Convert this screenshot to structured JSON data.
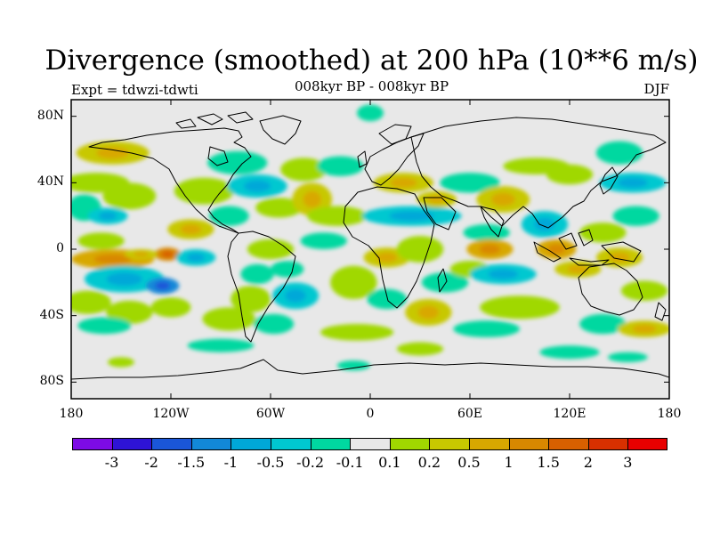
{
  "header": {
    "title": "Divergence (smoothed) at 200 hPa (10**6 m/s)",
    "subtitle": "008kyr BP - 008kyr BP",
    "expt": "Expt = tdwzi-tdwti",
    "season": "DJF"
  },
  "map": {
    "projection": "cylindrical-equidistant",
    "lon_range": [
      -180,
      180
    ],
    "lat_range": [
      -90,
      90
    ],
    "background_color": "#e8e8e8",
    "coastline_color": "#000000",
    "lat_ticks": [
      {
        "value": 80,
        "label": "80N"
      },
      {
        "value": 40,
        "label": "40N"
      },
      {
        "value": 0,
        "label": "0"
      },
      {
        "value": -40,
        "label": "40S"
      },
      {
        "value": -80,
        "label": "80S"
      }
    ],
    "lon_ticks": [
      {
        "value": -180,
        "label": "180"
      },
      {
        "value": -120,
        "label": "120W"
      },
      {
        "value": -60,
        "label": "60W"
      },
      {
        "value": 0,
        "label": "0"
      },
      {
        "value": 60,
        "label": "60E"
      },
      {
        "value": 120,
        "label": "120E"
      },
      {
        "value": 180,
        "label": "180"
      }
    ]
  },
  "colorbar": {
    "colors": [
      "#7d0be5",
      "#2e13d6",
      "#1a56d8",
      "#1288d8",
      "#00a8d8",
      "#00c8d0",
      "#00d8a0",
      "#e8e8e8",
      "#a0d800",
      "#c8c800",
      "#d8a800",
      "#d88800",
      "#d86000",
      "#d83000",
      "#e80000"
    ],
    "labels": [
      "-3",
      "-2",
      "-1.5",
      "-1",
      "-0.5",
      "-0.2",
      "-0.1",
      "0.1",
      "0.2",
      "0.5",
      "1",
      "1.5",
      "2",
      "3"
    ]
  },
  "field": {
    "blobs": [
      {
        "lon": -155,
        "lat": 58,
        "rx": 22,
        "ry": 7,
        "level": 2
      },
      {
        "lon": -165,
        "lat": 40,
        "rx": 20,
        "ry": 6,
        "level": 1
      },
      {
        "lon": -172,
        "lat": 25,
        "rx": 10,
        "ry": 8,
        "level": -1
      },
      {
        "lon": -158,
        "lat": 20,
        "rx": 12,
        "ry": 5,
        "level": -2
      },
      {
        "lon": -145,
        "lat": 32,
        "rx": 16,
        "ry": 8,
        "level": 1
      },
      {
        "lon": -162,
        "lat": 5,
        "rx": 14,
        "ry": 5,
        "level": 1
      },
      {
        "lon": -155,
        "lat": -6,
        "rx": 25,
        "ry": 6,
        "level": 3
      },
      {
        "lon": -122,
        "lat": -3,
        "rx": 8,
        "ry": 4,
        "level": 4
      },
      {
        "lon": -138,
        "lat": -3,
        "rx": 10,
        "ry": 3,
        "level": 2
      },
      {
        "lon": -148,
        "lat": -18,
        "rx": 24,
        "ry": 8,
        "level": -2
      },
      {
        "lon": -125,
        "lat": -22,
        "rx": 10,
        "ry": 5,
        "level": -4
      },
      {
        "lon": -170,
        "lat": -32,
        "rx": 14,
        "ry": 7,
        "level": 1
      },
      {
        "lon": -145,
        "lat": -38,
        "rx": 14,
        "ry": 7,
        "level": 1
      },
      {
        "lon": -120,
        "lat": -35,
        "rx": 12,
        "ry": 6,
        "level": 1
      },
      {
        "lon": -160,
        "lat": -46,
        "rx": 16,
        "ry": 5,
        "level": -1
      },
      {
        "lon": -108,
        "lat": 12,
        "rx": 14,
        "ry": 6,
        "level": 2
      },
      {
        "lon": -100,
        "lat": 35,
        "rx": 18,
        "ry": 8,
        "level": 1
      },
      {
        "lon": -80,
        "lat": 52,
        "rx": 18,
        "ry": 7,
        "level": -1
      },
      {
        "lon": -68,
        "lat": 38,
        "rx": 18,
        "ry": 7,
        "level": -2
      },
      {
        "lon": -85,
        "lat": 20,
        "rx": 12,
        "ry": 6,
        "level": -1
      },
      {
        "lon": -55,
        "lat": 25,
        "rx": 14,
        "ry": 6,
        "level": 1
      },
      {
        "lon": -105,
        "lat": -5,
        "rx": 12,
        "ry": 5,
        "level": -2
      },
      {
        "lon": -60,
        "lat": 0,
        "rx": 14,
        "ry": 6,
        "level": 1
      },
      {
        "lon": -68,
        "lat": -15,
        "rx": 10,
        "ry": 6,
        "level": -1
      },
      {
        "lon": -50,
        "lat": -12,
        "rx": 10,
        "ry": 5,
        "level": -1
      },
      {
        "lon": -72,
        "lat": -30,
        "rx": 12,
        "ry": 8,
        "level": 1
      },
      {
        "lon": -45,
        "lat": -28,
        "rx": 14,
        "ry": 8,
        "level": -2
      },
      {
        "lon": -85,
        "lat": -42,
        "rx": 16,
        "ry": 7,
        "level": 1
      },
      {
        "lon": -58,
        "lat": -45,
        "rx": 12,
        "ry": 6,
        "level": -1
      },
      {
        "lon": -40,
        "lat": 48,
        "rx": 14,
        "ry": 7,
        "level": 1
      },
      {
        "lon": -18,
        "lat": 50,
        "rx": 14,
        "ry": 6,
        "level": -1
      },
      {
        "lon": -35,
        "lat": 30,
        "rx": 12,
        "ry": 10,
        "level": 2
      },
      {
        "lon": -20,
        "lat": 20,
        "rx": 18,
        "ry": 6,
        "level": 1
      },
      {
        "lon": -28,
        "lat": 5,
        "rx": 14,
        "ry": 5,
        "level": -1
      },
      {
        "lon": -10,
        "lat": -20,
        "rx": 14,
        "ry": 10,
        "level": 1
      },
      {
        "lon": 10,
        "lat": -5,
        "rx": 14,
        "ry": 6,
        "level": 2
      },
      {
        "lon": 10,
        "lat": -30,
        "rx": 12,
        "ry": 6,
        "level": -1
      },
      {
        "lon": -8,
        "lat": -50,
        "rx": 22,
        "ry": 5,
        "level": 1
      },
      {
        "lon": 0,
        "lat": 82,
        "rx": 8,
        "ry": 5,
        "level": -1
      },
      {
        "lon": 20,
        "lat": 40,
        "rx": 18,
        "ry": 6,
        "level": 2
      },
      {
        "lon": 25,
        "lat": 20,
        "rx": 30,
        "ry": 6,
        "level": -2
      },
      {
        "lon": 40,
        "lat": 30,
        "rx": 12,
        "ry": 5,
        "level": 2
      },
      {
        "lon": 30,
        "lat": 0,
        "rx": 14,
        "ry": 8,
        "level": 1
      },
      {
        "lon": 45,
        "lat": -20,
        "rx": 14,
        "ry": 6,
        "level": -1
      },
      {
        "lon": 35,
        "lat": -38,
        "rx": 14,
        "ry": 8,
        "level": 2
      },
      {
        "lon": 60,
        "lat": 40,
        "rx": 18,
        "ry": 6,
        "level": -1
      },
      {
        "lon": 80,
        "lat": 30,
        "rx": 16,
        "ry": 8,
        "level": 2
      },
      {
        "lon": 70,
        "lat": 10,
        "rx": 14,
        "ry": 5,
        "level": -1
      },
      {
        "lon": 72,
        "lat": 0,
        "rx": 14,
        "ry": 6,
        "level": 3
      },
      {
        "lon": 60,
        "lat": -12,
        "rx": 12,
        "ry": 5,
        "level": 1
      },
      {
        "lon": 80,
        "lat": -15,
        "rx": 20,
        "ry": 6,
        "level": -2
      },
      {
        "lon": 90,
        "lat": -35,
        "rx": 24,
        "ry": 7,
        "level": 1
      },
      {
        "lon": 70,
        "lat": -48,
        "rx": 20,
        "ry": 5,
        "level": -1
      },
      {
        "lon": 100,
        "lat": 50,
        "rx": 20,
        "ry": 5,
        "level": 1
      },
      {
        "lon": 120,
        "lat": 45,
        "rx": 14,
        "ry": 6,
        "level": 1
      },
      {
        "lon": 105,
        "lat": 15,
        "rx": 14,
        "ry": 8,
        "level": -2
      },
      {
        "lon": 112,
        "lat": 0,
        "rx": 12,
        "ry": 6,
        "level": 3
      },
      {
        "lon": 125,
        "lat": -12,
        "rx": 14,
        "ry": 5,
        "level": 2
      },
      {
        "lon": 140,
        "lat": 10,
        "rx": 14,
        "ry": 6,
        "level": 1
      },
      {
        "lon": 150,
        "lat": 58,
        "rx": 14,
        "ry": 7,
        "level": -1
      },
      {
        "lon": 158,
        "lat": 40,
        "rx": 20,
        "ry": 6,
        "level": -2
      },
      {
        "lon": 160,
        "lat": 20,
        "rx": 14,
        "ry": 6,
        "level": -1
      },
      {
        "lon": 150,
        "lat": -5,
        "rx": 14,
        "ry": 6,
        "level": 2
      },
      {
        "lon": 165,
        "lat": -25,
        "rx": 14,
        "ry": 6,
        "level": 1
      },
      {
        "lon": 140,
        "lat": -45,
        "rx": 14,
        "ry": 6,
        "level": -1
      },
      {
        "lon": 165,
        "lat": -48,
        "rx": 16,
        "ry": 5,
        "level": 2
      },
      {
        "lon": -90,
        "lat": -58,
        "rx": 20,
        "ry": 4,
        "level": -1
      },
      {
        "lon": 30,
        "lat": -60,
        "rx": 14,
        "ry": 4,
        "level": 1
      },
      {
        "lon": 120,
        "lat": -62,
        "rx": 18,
        "ry": 4,
        "level": -1
      },
      {
        "lon": -150,
        "lat": -68,
        "rx": 8,
        "ry": 3,
        "level": 1
      },
      {
        "lon": -10,
        "lat": -70,
        "rx": 10,
        "ry": 3,
        "level": -1
      },
      {
        "lon": 155,
        "lat": -65,
        "rx": 12,
        "ry": 3,
        "level": -1
      }
    ]
  }
}
